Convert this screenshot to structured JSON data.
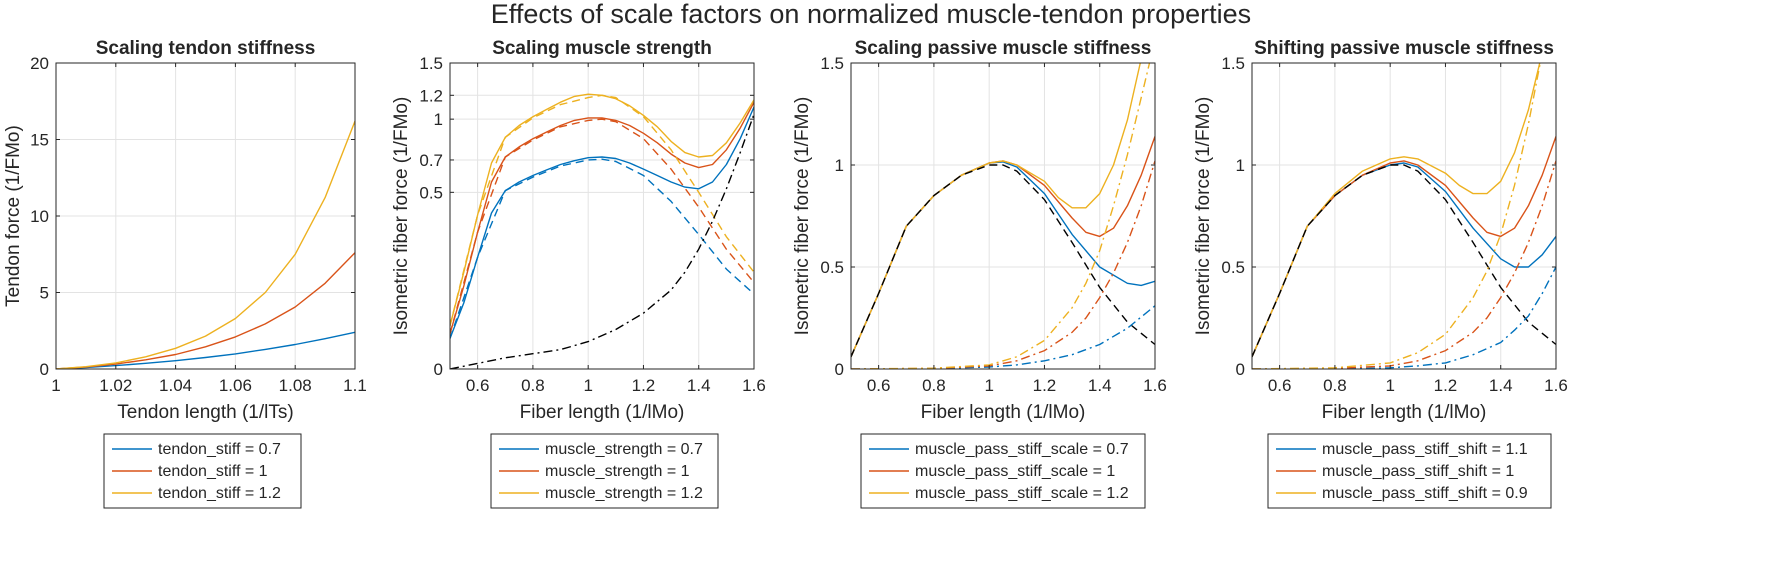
{
  "figure_title": "Effects of scale factors on normalized muscle-tendon properties",
  "colors": {
    "blue": "#0072BD",
    "orange": "#D95319",
    "yellow": "#EDB120",
    "black": "#000000"
  },
  "chart_data": [
    {
      "type": "line",
      "title": "Scaling tendon stiffness",
      "xlabel": "Tendon length (1/lTs)",
      "ylabel": "Tendon force (1/FMo)",
      "xlim": [
        1,
        1.1
      ],
      "ylim": [
        0,
        20
      ],
      "xticks": [
        1,
        1.02,
        1.04,
        1.06,
        1.08,
        1.1
      ],
      "xtick_labels": [
        "1",
        "1.02",
        "1.04",
        "1.06",
        "1.08",
        "1.1"
      ],
      "yticks": [
        0,
        5,
        10,
        15,
        20
      ],
      "ytick_labels": [
        "0",
        "5",
        "10",
        "15",
        "20"
      ],
      "grid": true,
      "legend_position": "below",
      "series": [
        {
          "name": "tendon_stiff = 0.7",
          "color": "#0072BD",
          "style": "solid",
          "x": [
            1,
            1.01,
            1.02,
            1.03,
            1.04,
            1.05,
            1.06,
            1.07,
            1.08,
            1.09,
            1.1
          ],
          "y": [
            0,
            0.1,
            0.22,
            0.37,
            0.54,
            0.75,
            0.99,
            1.28,
            1.6,
            1.98,
            2.4
          ]
        },
        {
          "name": "tendon_stiff = 1",
          "color": "#D95319",
          "style": "solid",
          "x": [
            1,
            1.01,
            1.02,
            1.03,
            1.04,
            1.05,
            1.06,
            1.07,
            1.08,
            1.09,
            1.1
          ],
          "y": [
            0,
            0.13,
            0.32,
            0.6,
            0.95,
            1.45,
            2.1,
            2.95,
            4.05,
            5.6,
            7.6
          ]
        },
        {
          "name": "tendon_stiff = 1.2",
          "color": "#EDB120",
          "style": "solid",
          "x": [
            1,
            1.01,
            1.02,
            1.03,
            1.04,
            1.05,
            1.06,
            1.07,
            1.08,
            1.09,
            1.1
          ],
          "y": [
            0,
            0.15,
            0.4,
            0.8,
            1.35,
            2.15,
            3.3,
            5.0,
            7.5,
            11.2,
            16.2
          ]
        }
      ],
      "legend": [
        "tendon_stiff = 0.7",
        "tendon_stiff = 1",
        "tendon_stiff = 1.2"
      ]
    },
    {
      "type": "line",
      "title": "Scaling muscle strength",
      "xlabel": "Fiber length (1/lMo)",
      "ylabel": "Isometric fiber force (1/FMo)",
      "xlim": [
        0.5,
        1.6
      ],
      "ylim": [
        0,
        1.5
      ],
      "yscale": "sqrt",
      "xticks": [
        0.6,
        0.8,
        1,
        1.2,
        1.4,
        1.6
      ],
      "xtick_labels": [
        "0.6",
        "0.8",
        "1",
        "1.2",
        "1.4",
        "1.6"
      ],
      "yticks": [
        0,
        0.5,
        0.7,
        1,
        1.2,
        1.5
      ],
      "ytick_labels": [
        "0",
        "0.5",
        "0.7",
        "1",
        "1.2",
        "1.5"
      ],
      "grid": true,
      "legend_position": "below",
      "series": [
        {
          "name": "muscle_strength = 0.7",
          "color": "#0072BD",
          "style": "solid",
          "x": [
            0.5,
            0.55,
            0.6,
            0.65,
            0.7,
            0.75,
            0.8,
            0.85,
            0.9,
            0.95,
            1.0,
            1.05,
            1.1,
            1.15,
            1.2,
            1.25,
            1.3,
            1.35,
            1.4,
            1.45,
            1.5,
            1.55,
            1.6
          ],
          "y": [
            0.015,
            0.07,
            0.2,
            0.39,
            0.51,
            0.56,
            0.6,
            0.635,
            0.67,
            0.695,
            0.715,
            0.72,
            0.71,
            0.68,
            0.64,
            0.6,
            0.56,
            0.53,
            0.52,
            0.56,
            0.67,
            0.85,
            1.1
          ]
        },
        {
          "name": "muscle_strength = 1",
          "color": "#D95319",
          "style": "solid",
          "x": [
            0.5,
            0.55,
            0.6,
            0.65,
            0.7,
            0.75,
            0.8,
            0.85,
            0.9,
            0.95,
            1.0,
            1.05,
            1.1,
            1.15,
            1.2,
            1.25,
            1.3,
            1.35,
            1.4,
            1.45,
            1.5,
            1.55,
            1.6
          ],
          "y": [
            0.02,
            0.11,
            0.3,
            0.56,
            0.72,
            0.79,
            0.85,
            0.9,
            0.95,
            0.99,
            1.01,
            1.01,
            0.99,
            0.95,
            0.89,
            0.82,
            0.74,
            0.68,
            0.65,
            0.67,
            0.77,
            0.93,
            1.14
          ]
        },
        {
          "name": "muscle_strength = 1.2",
          "color": "#EDB120",
          "style": "solid",
          "x": [
            0.5,
            0.55,
            0.6,
            0.65,
            0.7,
            0.75,
            0.8,
            0.85,
            0.9,
            0.95,
            1.0,
            1.05,
            1.1,
            1.15,
            1.2,
            1.25,
            1.3,
            1.35,
            1.4,
            1.45,
            1.5,
            1.55,
            1.6
          ],
          "y": [
            0.03,
            0.15,
            0.38,
            0.68,
            0.86,
            0.95,
            1.02,
            1.08,
            1.14,
            1.19,
            1.21,
            1.2,
            1.17,
            1.11,
            1.03,
            0.94,
            0.83,
            0.75,
            0.72,
            0.73,
            0.82,
            0.97,
            1.16
          ]
        },
        {
          "name": "",
          "color": "#0072BD",
          "style": "dashed",
          "x": [
            0.5,
            0.6,
            0.7,
            0.8,
            0.9,
            1.0,
            1.05,
            1.1,
            1.2,
            1.3,
            1.4,
            1.5,
            1.6
          ],
          "y": [
            0.015,
            0.2,
            0.51,
            0.59,
            0.66,
            0.7,
            0.705,
            0.69,
            0.6,
            0.45,
            0.29,
            0.16,
            0.09
          ]
        },
        {
          "name": "",
          "color": "#D95319",
          "style": "dashed",
          "x": [
            0.5,
            0.6,
            0.7,
            0.8,
            0.9,
            1.0,
            1.05,
            1.1,
            1.2,
            1.3,
            1.4,
            1.5,
            1.6
          ],
          "y": [
            0.02,
            0.3,
            0.72,
            0.84,
            0.94,
            0.99,
            1.0,
            0.98,
            0.85,
            0.64,
            0.42,
            0.23,
            0.12
          ]
        },
        {
          "name": "",
          "color": "#EDB120",
          "style": "dashed",
          "x": [
            0.5,
            0.6,
            0.7,
            0.8,
            0.9,
            1.0,
            1.05,
            1.1,
            1.2,
            1.3,
            1.4,
            1.5,
            1.6
          ],
          "y": [
            0.03,
            0.38,
            0.86,
            1.01,
            1.12,
            1.18,
            1.2,
            1.18,
            1.02,
            0.77,
            0.5,
            0.28,
            0.15
          ]
        },
        {
          "name": "",
          "color": "#000000",
          "style": "dashdot",
          "x": [
            0.5,
            0.7,
            0.9,
            1.0,
            1.1,
            1.2,
            1.3,
            1.35,
            1.4,
            1.45,
            1.5,
            1.55,
            1.6
          ],
          "y": [
            0,
            0.002,
            0.006,
            0.012,
            0.025,
            0.05,
            0.1,
            0.15,
            0.23,
            0.35,
            0.52,
            0.75,
            1.04
          ]
        }
      ],
      "legend": [
        "muscle_strength = 0.7",
        "muscle_strength = 1",
        "muscle_strength = 1.2"
      ]
    },
    {
      "type": "line",
      "title": "Scaling passive muscle stiffness",
      "xlabel": "Fiber length (1/lMo)",
      "ylabel": "Isometric fiber force (1/FMo)",
      "xlim": [
        0.5,
        1.6
      ],
      "ylim": [
        0,
        1.5
      ],
      "xticks": [
        0.6,
        0.8,
        1,
        1.2,
        1.4,
        1.6
      ],
      "xtick_labels": [
        "0.6",
        "0.8",
        "1",
        "1.2",
        "1.4",
        "1.6"
      ],
      "yticks": [
        0,
        0.5,
        1,
        1.5
      ],
      "ytick_labels": [
        "0",
        "0.5",
        "1",
        "1.5"
      ],
      "grid": true,
      "legend_position": "below",
      "series": [
        {
          "name": "muscle_pass_stiff_scale = 0.7",
          "color": "#0072BD",
          "style": "solid",
          "x": [
            0.5,
            0.6,
            0.7,
            0.8,
            0.9,
            1.0,
            1.05,
            1.1,
            1.2,
            1.3,
            1.4,
            1.5,
            1.55,
            1.6
          ],
          "y": [
            0.06,
            0.37,
            0.7,
            0.85,
            0.95,
            1.01,
            1.015,
            0.99,
            0.86,
            0.66,
            0.5,
            0.42,
            0.41,
            0.43
          ]
        },
        {
          "name": "muscle_pass_stiff_scale = 1",
          "color": "#D95319",
          "style": "solid",
          "x": [
            0.5,
            0.6,
            0.7,
            0.8,
            0.9,
            1.0,
            1.05,
            1.1,
            1.2,
            1.3,
            1.35,
            1.4,
            1.45,
            1.5,
            1.55,
            1.6
          ],
          "y": [
            0.06,
            0.37,
            0.7,
            0.85,
            0.95,
            1.01,
            1.02,
            1.0,
            0.9,
            0.74,
            0.67,
            0.65,
            0.69,
            0.8,
            0.95,
            1.14
          ]
        },
        {
          "name": "muscle_pass_stiff_scale = 1.2",
          "color": "#EDB120",
          "style": "solid",
          "x": [
            0.5,
            0.6,
            0.7,
            0.8,
            0.9,
            1.0,
            1.05,
            1.1,
            1.2,
            1.25,
            1.3,
            1.35,
            1.4,
            1.45,
            1.5,
            1.55
          ],
          "y": [
            0.06,
            0.37,
            0.7,
            0.85,
            0.95,
            1.01,
            1.02,
            1.0,
            0.92,
            0.84,
            0.79,
            0.79,
            0.86,
            1.0,
            1.22,
            1.52
          ]
        },
        {
          "name": "",
          "color": "#000000",
          "style": "dashed",
          "x": [
            0.5,
            0.6,
            0.7,
            0.8,
            0.9,
            1.0,
            1.05,
            1.1,
            1.2,
            1.3,
            1.4,
            1.5,
            1.6
          ],
          "y": [
            0.06,
            0.37,
            0.7,
            0.85,
            0.95,
            1.0,
            1.0,
            0.97,
            0.83,
            0.62,
            0.4,
            0.23,
            0.12
          ]
        },
        {
          "name": "",
          "color": "#0072BD",
          "style": "dashdot",
          "x": [
            0.5,
            0.8,
            1.0,
            1.1,
            1.2,
            1.3,
            1.4,
            1.5,
            1.6
          ],
          "y": [
            0,
            0.002,
            0.01,
            0.02,
            0.04,
            0.07,
            0.12,
            0.2,
            0.31
          ]
        },
        {
          "name": "",
          "color": "#D95319",
          "style": "dashdot",
          "x": [
            0.5,
            0.8,
            1.0,
            1.1,
            1.2,
            1.3,
            1.35,
            1.4,
            1.45,
            1.5,
            1.55,
            1.6
          ],
          "y": [
            0,
            0.003,
            0.015,
            0.04,
            0.09,
            0.18,
            0.25,
            0.35,
            0.47,
            0.62,
            0.8,
            1.02
          ]
        },
        {
          "name": "",
          "color": "#EDB120",
          "style": "dashdot",
          "x": [
            0.5,
            0.8,
            1.0,
            1.1,
            1.2,
            1.3,
            1.35,
            1.4,
            1.45,
            1.5,
            1.55,
            1.58
          ],
          "y": [
            0,
            0.004,
            0.02,
            0.06,
            0.14,
            0.3,
            0.42,
            0.58,
            0.8,
            1.05,
            1.33,
            1.5
          ]
        }
      ],
      "legend": [
        "muscle_pass_stiff_scale = 0.7",
        "muscle_pass_stiff_scale = 1",
        "muscle_pass_stiff_scale = 1.2"
      ]
    },
    {
      "type": "line",
      "title": "Shifting passive muscle stiffness",
      "xlabel": "Fiber length (1/lMo)",
      "ylabel": "Isometric fiber force (1/FMo)",
      "xlim": [
        0.5,
        1.6
      ],
      "ylim": [
        0,
        1.5
      ],
      "xticks": [
        0.6,
        0.8,
        1,
        1.2,
        1.4,
        1.6
      ],
      "xtick_labels": [
        "0.6",
        "0.8",
        "1",
        "1.2",
        "1.4",
        "1.6"
      ],
      "yticks": [
        0,
        0.5,
        1,
        1.5
      ],
      "ytick_labels": [
        "0",
        "0.5",
        "1",
        "1.5"
      ],
      "grid": true,
      "legend_position": "below",
      "series": [
        {
          "name": "muscle_pass_stiff_shift = 1.1",
          "color": "#0072BD",
          "style": "solid",
          "x": [
            0.5,
            0.6,
            0.7,
            0.8,
            0.9,
            1.0,
            1.05,
            1.1,
            1.2,
            1.3,
            1.4,
            1.45,
            1.5,
            1.55,
            1.6
          ],
          "y": [
            0.06,
            0.37,
            0.7,
            0.85,
            0.95,
            1.0,
            1.01,
            0.99,
            0.87,
            0.69,
            0.54,
            0.5,
            0.5,
            0.56,
            0.65
          ]
        },
        {
          "name": "muscle_pass_stiff_shift = 1",
          "color": "#D95319",
          "style": "solid",
          "x": [
            0.5,
            0.6,
            0.7,
            0.8,
            0.9,
            1.0,
            1.05,
            1.1,
            1.2,
            1.3,
            1.35,
            1.4,
            1.45,
            1.5,
            1.55,
            1.6
          ],
          "y": [
            0.06,
            0.37,
            0.7,
            0.85,
            0.95,
            1.01,
            1.02,
            1.0,
            0.9,
            0.74,
            0.67,
            0.65,
            0.69,
            0.8,
            0.95,
            1.14
          ]
        },
        {
          "name": "muscle_pass_stiff_shift = 0.9",
          "color": "#EDB120",
          "style": "solid",
          "x": [
            0.5,
            0.6,
            0.7,
            0.8,
            0.9,
            1.0,
            1.05,
            1.1,
            1.2,
            1.25,
            1.3,
            1.35,
            1.4,
            1.45,
            1.5,
            1.55
          ],
          "y": [
            0.06,
            0.37,
            0.7,
            0.86,
            0.97,
            1.03,
            1.04,
            1.03,
            0.96,
            0.9,
            0.86,
            0.86,
            0.92,
            1.06,
            1.27,
            1.55
          ]
        },
        {
          "name": "",
          "color": "#000000",
          "style": "dashed",
          "x": [
            0.5,
            0.6,
            0.7,
            0.8,
            0.9,
            1.0,
            1.05,
            1.1,
            1.2,
            1.3,
            1.4,
            1.5,
            1.6
          ],
          "y": [
            0.06,
            0.37,
            0.7,
            0.85,
            0.95,
            1.0,
            1.0,
            0.97,
            0.83,
            0.62,
            0.4,
            0.23,
            0.12
          ]
        },
        {
          "name": "",
          "color": "#0072BD",
          "style": "dashdot",
          "x": [
            0.5,
            0.9,
            1.0,
            1.1,
            1.2,
            1.3,
            1.4,
            1.45,
            1.5,
            1.55,
            1.6
          ],
          "y": [
            0,
            0.002,
            0.006,
            0.015,
            0.03,
            0.07,
            0.13,
            0.19,
            0.26,
            0.37,
            0.5
          ]
        },
        {
          "name": "",
          "color": "#D95319",
          "style": "dashdot",
          "x": [
            0.5,
            0.8,
            1.0,
            1.1,
            1.2,
            1.3,
            1.35,
            1.4,
            1.45,
            1.5,
            1.55,
            1.6
          ],
          "y": [
            0,
            0.003,
            0.015,
            0.04,
            0.09,
            0.18,
            0.25,
            0.35,
            0.47,
            0.62,
            0.8,
            1.02
          ]
        },
        {
          "name": "",
          "color": "#EDB120",
          "style": "dashdot",
          "x": [
            0.5,
            0.8,
            1.0,
            1.1,
            1.2,
            1.3,
            1.35,
            1.4,
            1.45,
            1.5,
            1.55
          ],
          "y": [
            0,
            0.006,
            0.03,
            0.08,
            0.17,
            0.35,
            0.48,
            0.66,
            0.9,
            1.2,
            1.55
          ]
        }
      ],
      "legend": [
        "muscle_pass_stiff_shift = 1.1",
        "muscle_pass_stiff_shift = 1",
        "muscle_pass_stiff_shift = 0.9"
      ]
    }
  ]
}
